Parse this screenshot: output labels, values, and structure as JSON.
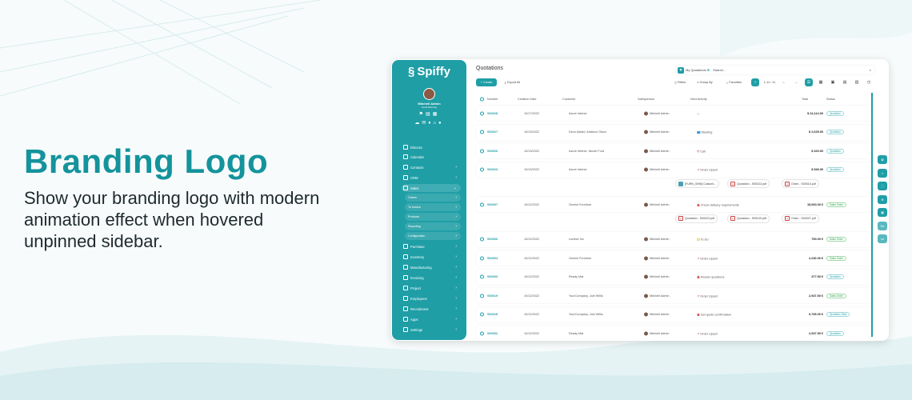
{
  "hero": {
    "title": "Branding Logo",
    "description": "Show your branding logo with modern animation effect when hovered unpinned sidebar."
  },
  "colors": {
    "accent": "#1f9ea6",
    "headline": "#14939c"
  },
  "sidebar": {
    "logo": "Spiffy",
    "user": "Mitchell Admin",
    "greeting": "Good Morning",
    "items": [
      {
        "label": "Discuss",
        "icon": "chat-icon",
        "chevron": false
      },
      {
        "label": "Calendar",
        "icon": "calendar-icon",
        "chevron": false
      },
      {
        "label": "Contacts",
        "icon": "contacts-icon",
        "chevron": true
      },
      {
        "label": "CRM",
        "icon": "crm-icon",
        "chevron": true
      },
      {
        "label": "Sales",
        "icon": "sales-icon",
        "chevron": true,
        "expanded": true,
        "children": [
          "Orders",
          "To invoice",
          "Products",
          "Reporting",
          "Configuration"
        ]
      },
      {
        "label": "Purchase",
        "icon": "purchase-icon",
        "chevron": true
      },
      {
        "label": "Inventory",
        "icon": "inventory-icon",
        "chevron": true
      },
      {
        "label": "Manufacturing",
        "icon": "manufacturing-icon",
        "chevron": true
      },
      {
        "label": "Invoicing",
        "icon": "invoicing-icon",
        "chevron": true
      },
      {
        "label": "Project",
        "icon": "project-icon",
        "chevron": true
      },
      {
        "label": "Employees",
        "icon": "employees-icon",
        "chevron": true
      },
      {
        "label": "Recruitment",
        "icon": "recruitment-icon",
        "chevron": true
      },
      {
        "label": "Apps",
        "icon": "apps-icon",
        "chevron": true
      },
      {
        "label": "Settings",
        "icon": "settings-icon",
        "chevron": true
      }
    ]
  },
  "header": {
    "title": "Quotations",
    "create": "+ Create",
    "export": "Export All",
    "facet": "My Quotations",
    "search_placeholder": "Search...",
    "filters": "Filters",
    "group_by": "Group By",
    "favorites": "Favorites",
    "pager": "1-11 / 11"
  },
  "columns": [
    "Number",
    "Creation Date",
    "Customer",
    "Salesperson",
    "Next Activity",
    "Total",
    "Status"
  ],
  "rows": [
    {
      "number": "S00028",
      "date": "10/17/2022",
      "customer": "Azure Interior",
      "salesperson": "Mitchell Admin",
      "activity": "",
      "total": "$ 24,114.00",
      "status": "Quotation"
    },
    {
      "number": "S00027",
      "date": "10/13/2022",
      "customer": "Deco Addict, Addison Olson",
      "salesperson": "Mitchell Admin",
      "activity": "Meeting",
      "total": "$ 2,025.00",
      "status": "Quotation"
    },
    {
      "number": "S00026",
      "date": "10/13/2022",
      "customer": "Azure Interior, Nicole Ford",
      "salesperson": "Mitchell Admin",
      "activity": "Call",
      "total": "$ 320.00",
      "status": "Quotation"
    },
    {
      "number": "S00023",
      "date": "10/13/2022",
      "customer": "Azure Interior",
      "salesperson": "Mitchell Admin",
      "activity": "Order Upsell",
      "total": "$ 546.00",
      "status": "Quotation",
      "attachments": [
        "[FURN_0096] Customi...",
        "Quotation - S00023.pdf",
        "Order - S00015.pdf"
      ]
    },
    {
      "number": "S00007",
      "date": "10/12/2022",
      "customer": "Gemini Furniture",
      "salesperson": "Mitchell Admin",
      "activity": "Check delivery requirements",
      "total": "15,060.00 €",
      "status": "Sales Order",
      "attachments": [
        "Quotation - S00023.pdf",
        "Quotation - S00010.pdf",
        "Order - S00007.pdf"
      ]
    },
    {
      "number": "S00006",
      "date": "10/12/2022",
      "customer": "Lumber Inc",
      "salesperson": "Mitchell Admin",
      "activity": "To Do",
      "total": "750.00 €",
      "status": "Sales Order"
    },
    {
      "number": "S00004",
      "date": "10/12/2022",
      "customer": "Gemini Furniture",
      "salesperson": "Mitchell Admin",
      "activity": "Order Upsell",
      "total": "2,240.00 €",
      "status": "Sales Order"
    },
    {
      "number": "S00003",
      "date": "10/12/2022",
      "customer": "Ready Mat",
      "salesperson": "Mitchell Admin",
      "activity": "Answer questions",
      "total": "377.50 €",
      "status": "Quotation"
    },
    {
      "number": "S00019",
      "date": "10/12/2022",
      "customer": "YourCompany, Joel Willis",
      "salesperson": "Mitchell Admin",
      "activity": "Order Upsell",
      "total": "2,947.50 €",
      "status": "Sales Order"
    },
    {
      "number": "S00018",
      "date": "10/12/2022",
      "customer": "YourCompany, Joel Willis",
      "salesperson": "Mitchell Admin",
      "activity": "Get quote confirmation",
      "total": "9,705.00 €",
      "status": "Quotation Sent"
    },
    {
      "number": "S00002",
      "date": "10/12/2022",
      "customer": "Ready Mat",
      "salesperson": "Mitchell Admin",
      "activity": "Order Upsell",
      "total": "2,947.50 €",
      "status": "Quotation"
    }
  ],
  "right_toolbar": [
    "star-icon",
    "search-icon",
    "expand-icon",
    "zoom-icon",
    "calculator-icon",
    "Se",
    "Le"
  ]
}
